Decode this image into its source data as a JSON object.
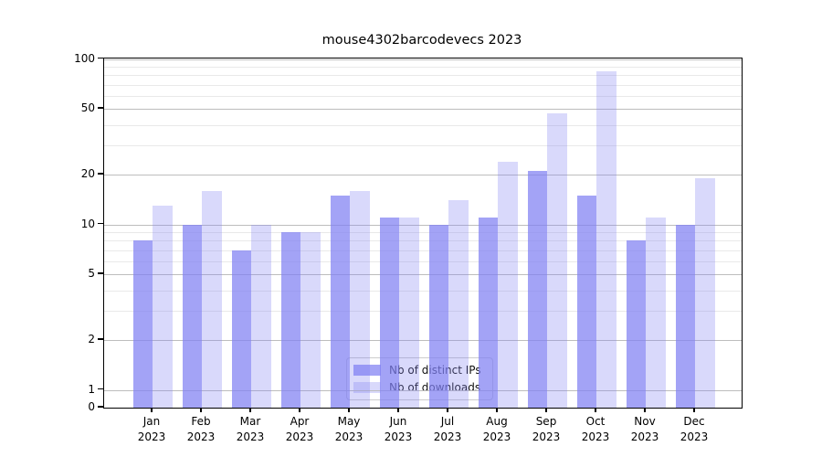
{
  "chart_data": {
    "type": "bar",
    "title": "mouse4302barcodevecs 2023",
    "categories": [
      "Jan",
      "Feb",
      "Mar",
      "Apr",
      "May",
      "Jun",
      "Jul",
      "Aug",
      "Sep",
      "Oct",
      "Nov",
      "Dec"
    ],
    "category_year": "2023",
    "series": [
      {
        "name": "Nb of distinct IPs",
        "color": "rgba(128,128,242,0.72)",
        "values": [
          8,
          10,
          7,
          9,
          15,
          11,
          10,
          11,
          21,
          15,
          8,
          10
        ]
      },
      {
        "name": "Nb of downloads",
        "color": "rgba(128,128,242,0.30)",
        "values": [
          13,
          16,
          10,
          9,
          16,
          11,
          14,
          24,
          47,
          84,
          11,
          19
        ]
      }
    ],
    "yscale": "log",
    "ylim": [
      0,
      100
    ],
    "y_ticks": [
      100,
      50,
      20,
      10,
      5,
      2,
      1,
      0
    ],
    "y_major_gridlines": [
      1,
      2,
      5,
      10,
      20,
      50,
      100
    ],
    "y_minor_gridlines": [
      3,
      4,
      6,
      7,
      8,
      9,
      30,
      40,
      60,
      70,
      80,
      90
    ],
    "grid": true,
    "legend": {
      "position": "bottom-center"
    }
  }
}
